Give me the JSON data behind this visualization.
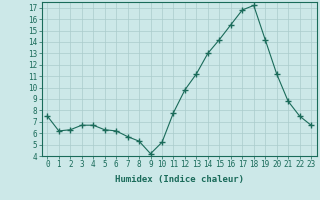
{
  "x": [
    0,
    1,
    2,
    3,
    4,
    5,
    6,
    7,
    8,
    9,
    10,
    11,
    12,
    13,
    14,
    15,
    16,
    17,
    18,
    19,
    20,
    21,
    22,
    23
  ],
  "y": [
    7.5,
    6.2,
    6.3,
    6.7,
    6.7,
    6.3,
    6.2,
    5.7,
    5.3,
    4.2,
    5.2,
    7.8,
    9.8,
    11.2,
    13.0,
    14.2,
    15.5,
    16.8,
    17.2,
    14.2,
    11.2,
    8.8,
    7.5,
    6.7
  ],
  "line_color": "#1a6b5a",
  "marker": "+",
  "marker_size": 4,
  "bg_color": "#cce8e8",
  "grid_color": "#aacccc",
  "xlabel": "Humidex (Indice chaleur)",
  "xlim": [
    -0.5,
    23.5
  ],
  "ylim": [
    4,
    17.5
  ],
  "yticks": [
    4,
    5,
    6,
    7,
    8,
    9,
    10,
    11,
    12,
    13,
    14,
    15,
    16,
    17
  ],
  "xticks": [
    0,
    1,
    2,
    3,
    4,
    5,
    6,
    7,
    8,
    9,
    10,
    11,
    12,
    13,
    14,
    15,
    16,
    17,
    18,
    19,
    20,
    21,
    22,
    23
  ],
  "tick_color": "#1a6b5a",
  "label_fontsize": 6.5,
  "tick_fontsize": 5.5
}
